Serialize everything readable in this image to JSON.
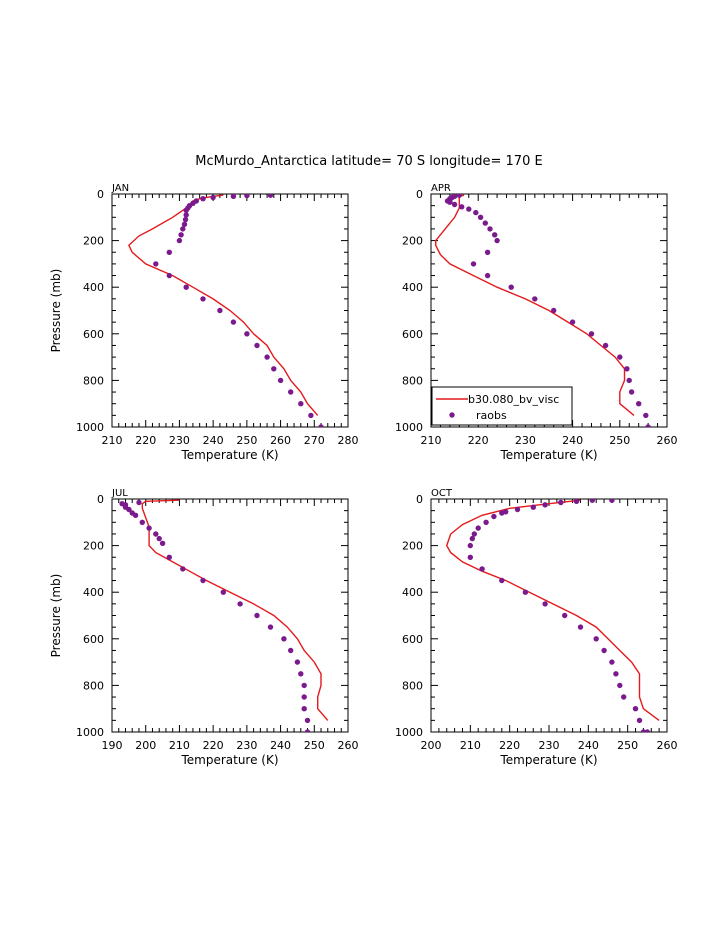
{
  "figure": {
    "title": "McMurdo_Antarctica  latitude= 70 S longitude= 170 E"
  },
  "colors": {
    "model": "#e41a1c",
    "obs": "#7a1a8c",
    "axis": "#000000"
  },
  "chart_data": [
    {
      "type": "line",
      "panel_label": "JAN",
      "xlabel": "Temperature (K)",
      "ylabel": "Pressure (mb)",
      "xlim": [
        210,
        280
      ],
      "ylim": [
        1000,
        0
      ],
      "x_ticks": [
        "210",
        "220",
        "230",
        "240",
        "250",
        "260",
        "270",
        "280"
      ],
      "y_ticks": [
        "0",
        "200",
        "400",
        "600",
        "800",
        "1000"
      ],
      "series": [
        {
          "name": "b30.080_bv_visc",
          "style": "line",
          "points": [
            [
              243,
              5
            ],
            [
              240,
              10
            ],
            [
              236,
              20
            ],
            [
              234,
              30
            ],
            [
              232,
              60
            ],
            [
              228,
              100
            ],
            [
              222,
              150
            ],
            [
              218,
              180
            ],
            [
              215,
              220
            ],
            [
              216,
              250
            ],
            [
              220,
              300
            ],
            [
              228,
              350
            ],
            [
              234,
              400
            ],
            [
              240,
              450
            ],
            [
              245,
              500
            ],
            [
              249,
              550
            ],
            [
              252,
              600
            ],
            [
              256,
              650
            ],
            [
              258,
              700
            ],
            [
              261,
              750
            ],
            [
              263,
              800
            ],
            [
              266,
              850
            ],
            [
              268,
              900
            ],
            [
              271,
              950
            ]
          ]
        },
        {
          "name": "raobs",
          "style": "scatter",
          "points": [
            [
              257,
              5
            ],
            [
              250,
              7
            ],
            [
              246,
              10
            ],
            [
              240,
              15
            ],
            [
              237,
              20
            ],
            [
              235,
              30
            ],
            [
              234,
              40
            ],
            [
              233,
              50
            ],
            [
              232.5,
              60
            ],
            [
              232,
              70
            ],
            [
              232,
              90
            ],
            [
              231.8,
              110
            ],
            [
              231.5,
              130
            ],
            [
              231,
              150
            ],
            [
              230.5,
              175
            ],
            [
              230,
              200
            ],
            [
              227,
              250
            ],
            [
              223,
              300
            ],
            [
              227,
              350
            ],
            [
              232,
              400
            ],
            [
              237,
              450
            ],
            [
              242,
              500
            ],
            [
              246,
              550
            ],
            [
              250,
              600
            ],
            [
              253,
              650
            ],
            [
              256,
              700
            ],
            [
              258,
              750
            ],
            [
              260,
              800
            ],
            [
              263,
              850
            ],
            [
              266,
              900
            ],
            [
              269,
              950
            ],
            [
              272,
              1000
            ]
          ]
        }
      ]
    },
    {
      "type": "line",
      "panel_label": "APR",
      "xlabel": "Temperature (K)",
      "ylabel": "Pressure (mb)",
      "xlim": [
        210,
        260
      ],
      "ylim": [
        1000,
        0
      ],
      "x_ticks": [
        "210",
        "220",
        "230",
        "240",
        "250",
        "260"
      ],
      "y_ticks": [
        "0",
        "200",
        "400",
        "600",
        "800",
        "1000"
      ],
      "legend": {
        "position": "bottom-left",
        "entries": [
          "b30.080_bv_visc",
          "raobs"
        ]
      },
      "series": [
        {
          "name": "b30.080_bv_visc",
          "style": "line",
          "points": [
            [
              217,
              5
            ],
            [
              216,
              10
            ],
            [
              216,
              30
            ],
            [
              216,
              60
            ],
            [
              215,
              100
            ],
            [
              213,
              150
            ],
            [
              211,
              200
            ],
            [
              211,
              220
            ],
            [
              212,
              260
            ],
            [
              214,
              300
            ],
            [
              219,
              350
            ],
            [
              224,
              400
            ],
            [
              230,
              450
            ],
            [
              235,
              500
            ],
            [
              239,
              550
            ],
            [
              243,
              600
            ],
            [
              246,
              650
            ],
            [
              249,
              700
            ],
            [
              251,
              750
            ],
            [
              251,
              800
            ],
            [
              250,
              850
            ],
            [
              250,
              900
            ],
            [
              253,
              950
            ]
          ]
        },
        {
          "name": "raobs",
          "style": "scatter",
          "points": [
            [
              216,
              5
            ],
            [
              215,
              10
            ],
            [
              214.5,
              15
            ],
            [
              214,
              20
            ],
            [
              214,
              25
            ],
            [
              213.5,
              30
            ],
            [
              214,
              35
            ],
            [
              215,
              45
            ],
            [
              216.5,
              55
            ],
            [
              218,
              65
            ],
            [
              219.5,
              80
            ],
            [
              220.5,
              100
            ],
            [
              221.5,
              125
            ],
            [
              222.5,
              150
            ],
            [
              223.5,
              175
            ],
            [
              224,
              200
            ],
            [
              222,
              250
            ],
            [
              219,
              300
            ],
            [
              222,
              350
            ],
            [
              227,
              400
            ],
            [
              232,
              450
            ],
            [
              236,
              500
            ],
            [
              240,
              550
            ],
            [
              244,
              600
            ],
            [
              247,
              650
            ],
            [
              250,
              700
            ],
            [
              251.5,
              750
            ],
            [
              252,
              800
            ],
            [
              252.5,
              850
            ],
            [
              254,
              900
            ],
            [
              255.5,
              950
            ],
            [
              256,
              1000
            ]
          ]
        }
      ]
    },
    {
      "type": "line",
      "panel_label": "JUL",
      "xlabel": "Temperature (K)",
      "ylabel": "Pressure (mb)",
      "xlim": [
        190,
        260
      ],
      "ylim": [
        1000,
        0
      ],
      "x_ticks": [
        "190",
        "200",
        "210",
        "220",
        "230",
        "240",
        "250",
        "260"
      ],
      "y_ticks": [
        "0",
        "200",
        "400",
        "600",
        "800",
        "1000"
      ],
      "series": [
        {
          "name": "b30.080_bv_visc",
          "style": "line",
          "points": [
            [
              210,
              5
            ],
            [
              200,
              10
            ],
            [
              199,
              20
            ],
            [
              199,
              40
            ],
            [
              200,
              80
            ],
            [
              201,
              120
            ],
            [
              201,
              170
            ],
            [
              201,
              200
            ],
            [
              203,
              230
            ],
            [
              208,
              270
            ],
            [
              213,
              310
            ],
            [
              218,
              350
            ],
            [
              225,
              400
            ],
            [
              232,
              450
            ],
            [
              238,
              500
            ],
            [
              242,
              550
            ],
            [
              245,
              600
            ],
            [
              247,
              650
            ],
            [
              250,
              700
            ],
            [
              252,
              750
            ],
            [
              252,
              800
            ],
            [
              251,
              850
            ],
            [
              251,
              900
            ],
            [
              254,
              950
            ]
          ]
        },
        {
          "name": "raobs",
          "style": "scatter",
          "points": [
            [
              198,
              15
            ],
            [
              193,
              20
            ],
            [
              194,
              25
            ],
            [
              194,
              35
            ],
            [
              195,
              45
            ],
            [
              196,
              60
            ],
            [
              197,
              70
            ],
            [
              199,
              100
            ],
            [
              201,
              125
            ],
            [
              203,
              150
            ],
            [
              204,
              170
            ],
            [
              205,
              190
            ],
            [
              207,
              250
            ],
            [
              211,
              300
            ],
            [
              217,
              350
            ],
            [
              223,
              400
            ],
            [
              228,
              450
            ],
            [
              233,
              500
            ],
            [
              237,
              550
            ],
            [
              241,
              600
            ],
            [
              243,
              650
            ],
            [
              245,
              700
            ],
            [
              246,
              750
            ],
            [
              247,
              800
            ],
            [
              247,
              850
            ],
            [
              247,
              900
            ],
            [
              248,
              950
            ],
            [
              248,
              1000
            ]
          ]
        }
      ]
    },
    {
      "type": "line",
      "panel_label": "OCT",
      "xlabel": "Temperature (K)",
      "ylabel": "Pressure (mb)",
      "xlim": [
        200,
        260
      ],
      "ylim": [
        1000,
        0
      ],
      "x_ticks": [
        "200",
        "210",
        "220",
        "230",
        "240",
        "250",
        "260"
      ],
      "y_ticks": [
        "0",
        "200",
        "400",
        "600",
        "800",
        "1000"
      ],
      "series": [
        {
          "name": "b30.080_bv_visc",
          "style": "line",
          "points": [
            [
              238,
              5
            ],
            [
              230,
              20
            ],
            [
              220,
              40
            ],
            [
              213,
              70
            ],
            [
              208,
              110
            ],
            [
              205,
              150
            ],
            [
              204,
              200
            ],
            [
              205,
              230
            ],
            [
              208,
              270
            ],
            [
              213,
              310
            ],
            [
              219,
              350
            ],
            [
              225,
              400
            ],
            [
              231,
              450
            ],
            [
              237,
              500
            ],
            [
              242,
              550
            ],
            [
              245,
              600
            ],
            [
              248,
              650
            ],
            [
              251,
              700
            ],
            [
              253,
              750
            ],
            [
              253,
              800
            ],
            [
              253,
              850
            ],
            [
              254,
              900
            ],
            [
              258,
              950
            ]
          ]
        },
        {
          "name": "raobs",
          "style": "scatter",
          "points": [
            [
              246,
              5
            ],
            [
              241,
              5
            ],
            [
              237,
              10
            ],
            [
              233,
              15
            ],
            [
              229,
              25
            ],
            [
              226,
              35
            ],
            [
              222,
              45
            ],
            [
              219,
              55
            ],
            [
              218,
              60
            ],
            [
              216,
              75
            ],
            [
              214,
              100
            ],
            [
              212,
              125
            ],
            [
              211,
              150
            ],
            [
              210.5,
              170
            ],
            [
              210,
              200
            ],
            [
              210,
              250
            ],
            [
              213,
              300
            ],
            [
              218,
              350
            ],
            [
              224,
              400
            ],
            [
              229,
              450
            ],
            [
              234,
              500
            ],
            [
              238,
              550
            ],
            [
              242,
              600
            ],
            [
              244,
              650
            ],
            [
              246,
              700
            ],
            [
              247,
              750
            ],
            [
              248,
              800
            ],
            [
              249,
              850
            ],
            [
              252,
              900
            ],
            [
              253,
              950
            ],
            [
              255,
              1000
            ],
            [
              254,
              1000
            ]
          ]
        }
      ]
    }
  ]
}
